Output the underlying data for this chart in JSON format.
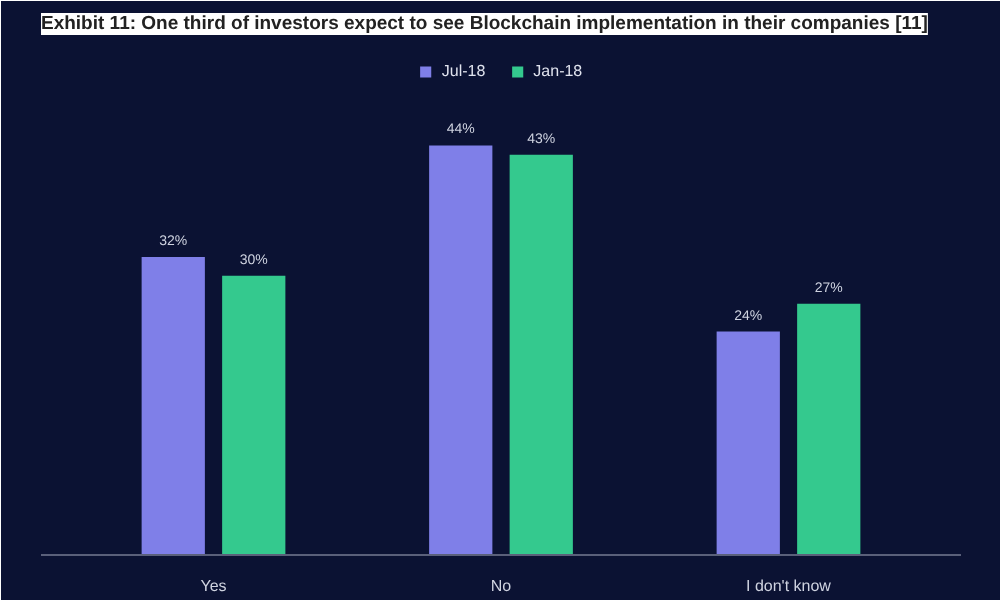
{
  "chart_data": {
    "type": "bar",
    "title": "Exhibit 11: One third of investors expect to see Blockchain implementation in their companies [11]",
    "categories": [
      "Yes",
      "No",
      "I don't know"
    ],
    "series": [
      {
        "name": "Jul-18",
        "color": "#7f7fe8",
        "values": [
          32,
          44,
          24
        ],
        "value_labels": [
          "32%",
          "44%",
          "24%"
        ]
      },
      {
        "name": "Jan-18",
        "color": "#34c98e",
        "values": [
          30,
          43,
          27
        ],
        "value_labels": [
          "30%",
          "43%",
          "27%"
        ]
      }
    ],
    "legend": "top",
    "grid": false
  }
}
